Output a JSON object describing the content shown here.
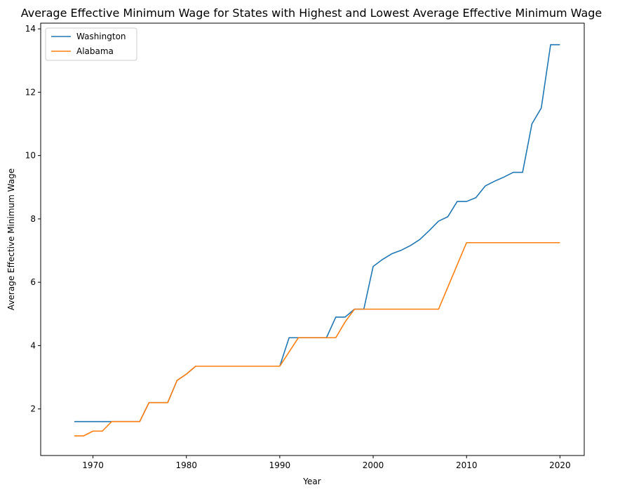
{
  "chart_data": {
    "type": "line",
    "title": "Average Effective Minimum Wage for States with Highest and Lowest Average Effective Minimum Wage",
    "xlabel": "Year",
    "ylabel": "Average Effective Minimum Wage",
    "xlim": [
      1964.4,
      2022.6
    ],
    "ylim": [
      0.53,
      14.18
    ],
    "xticks": [
      1970,
      1980,
      1990,
      2000,
      2010,
      2020
    ],
    "yticks": [
      2,
      4,
      6,
      8,
      10,
      12,
      14
    ],
    "grid": false,
    "legend_position": "top-left",
    "x": [
      1968,
      1969,
      1970,
      1971,
      1972,
      1973,
      1974,
      1975,
      1976,
      1977,
      1978,
      1979,
      1980,
      1981,
      1982,
      1983,
      1984,
      1985,
      1986,
      1987,
      1988,
      1989,
      1990,
      1991,
      1992,
      1993,
      1994,
      1995,
      1996,
      1997,
      1998,
      1999,
      2000,
      2001,
      2002,
      2003,
      2004,
      2005,
      2006,
      2007,
      2008,
      2009,
      2010,
      2011,
      2012,
      2013,
      2014,
      2015,
      2016,
      2017,
      2018,
      2019,
      2020
    ],
    "series": [
      {
        "name": "Washington",
        "color": "#1f77b4",
        "values": [
          1.6,
          1.6,
          1.6,
          1.6,
          1.6,
          1.6,
          1.6,
          1.6,
          2.2,
          2.2,
          2.2,
          2.9,
          3.1,
          3.35,
          3.35,
          3.35,
          3.35,
          3.35,
          3.35,
          3.35,
          3.35,
          3.35,
          3.35,
          4.25,
          4.25,
          4.25,
          4.25,
          4.25,
          4.9,
          4.9,
          5.15,
          5.15,
          6.5,
          6.72,
          6.9,
          7.01,
          7.16,
          7.35,
          7.63,
          7.93,
          8.07,
          8.55,
          8.55,
          8.67,
          9.04,
          9.19,
          9.32,
          9.47,
          9.47,
          11.0,
          11.5,
          13.5,
          13.5
        ]
      },
      {
        "name": "Alabama",
        "color": "#ff7f0e",
        "values": [
          1.15,
          1.15,
          1.3,
          1.3,
          1.6,
          1.6,
          1.6,
          1.6,
          2.2,
          2.2,
          2.2,
          2.9,
          3.1,
          3.35,
          3.35,
          3.35,
          3.35,
          3.35,
          3.35,
          3.35,
          3.35,
          3.35,
          3.35,
          3.8,
          4.25,
          4.25,
          4.25,
          4.25,
          4.25,
          4.75,
          5.15,
          5.15,
          5.15,
          5.15,
          5.15,
          5.15,
          5.15,
          5.15,
          5.15,
          5.15,
          5.85,
          6.55,
          7.25,
          7.25,
          7.25,
          7.25,
          7.25,
          7.25,
          7.25,
          7.25,
          7.25,
          7.25,
          7.25
        ]
      }
    ]
  }
}
